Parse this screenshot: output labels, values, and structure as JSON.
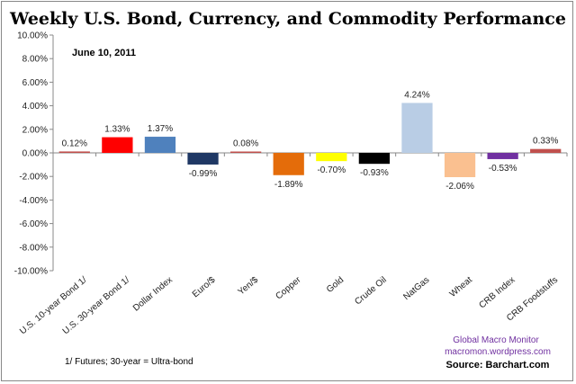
{
  "chart_data": {
    "type": "bar",
    "title": "Weekly U.S. Bond, Currency, and Commodity Performance",
    "subtitle": "June 10, 2011",
    "categories": [
      "U.S. 10-year Bond 1/",
      "U.S. 30-year Bond 1/",
      "Dollar Index",
      "Euro/$",
      "Yen/$",
      "Copper",
      "Gold",
      "Crude Oil",
      "NatGas",
      "Wheat",
      "CRB Index",
      "CRB Foodstuffs"
    ],
    "values": [
      0.12,
      1.33,
      1.37,
      -0.99,
      0.08,
      -1.89,
      -0.7,
      -0.93,
      4.24,
      -2.06,
      -0.53,
      0.33
    ],
    "data_labels": [
      "0.12%",
      "1.33%",
      "1.37%",
      "-0.99%",
      "0.08%",
      "-1.89%",
      "-0.70%",
      "-0.93%",
      "4.24%",
      "-2.06%",
      "-0.53%",
      "0.33%"
    ],
    "colors": [
      "#c0504d",
      "#ff0000",
      "#4f81bd",
      "#1f3864",
      "#c0504d",
      "#e46c0a",
      "#ffff00",
      "#000000",
      "#b9cde5",
      "#fac090",
      "#7030a0",
      "#c0504d"
    ],
    "ylim": [
      -10,
      10
    ],
    "yticks": [
      10,
      8,
      6,
      4,
      2,
      0,
      -2,
      -4,
      -6,
      -8,
      -10
    ],
    "ytick_labels": [
      "10.00%",
      "8.00%",
      "6.00%",
      "4.00%",
      "2.00%",
      "0.00%",
      "-2.00%",
      "-4.00%",
      "-6.00%",
      "-8.00%",
      "-10.00%"
    ],
    "xlabel": "",
    "ylabel": "",
    "grid": false,
    "legend": "none"
  },
  "footnote": "1/ Futures; 30-year = Ultra-bond",
  "brand": {
    "line1": "Global Macro Monitor",
    "line2": "macromon.wordpress.com"
  },
  "source": "Source: Barchart.com"
}
